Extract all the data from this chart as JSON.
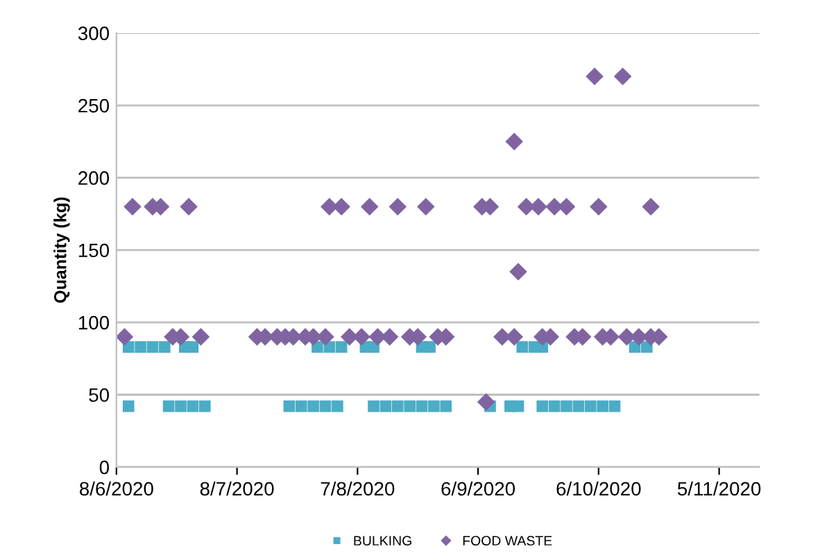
{
  "chart_data": {
    "type": "scatter",
    "ylabel": "Quantity (kg)",
    "xlim": [
      "2020-06-08",
      "2020-11-15"
    ],
    "xticks": [
      {
        "value": "2020-06-08",
        "label": "8/6/2020"
      },
      {
        "value": "2020-07-08",
        "label": "8/7/2020"
      },
      {
        "value": "2020-08-07",
        "label": "7/8/2020"
      },
      {
        "value": "2020-09-06",
        "label": "6/9/2020"
      },
      {
        "value": "2020-10-06",
        "label": "6/10/2020"
      },
      {
        "value": "2020-11-05",
        "label": "5/11/2020"
      }
    ],
    "ylim": [
      0,
      300
    ],
    "yticks": [
      0,
      50,
      100,
      150,
      200,
      250,
      300
    ],
    "grid": "y",
    "legend": "bottom",
    "series": [
      {
        "name": "BULKING",
        "color": "#4bacc6",
        "marker": "square",
        "x": [
          "2020-06-11",
          "2020-06-21",
          "2020-06-24",
          "2020-06-27",
          "2020-06-30",
          "2020-07-21",
          "2020-07-24",
          "2020-07-27",
          "2020-07-30",
          "2020-08-02",
          "2020-08-11",
          "2020-08-14",
          "2020-08-17",
          "2020-08-20",
          "2020-08-23",
          "2020-08-26",
          "2020-08-29",
          "2020-09-09",
          "2020-09-14",
          "2020-09-16",
          "2020-09-22",
          "2020-09-25",
          "2020-09-28",
          "2020-10-01",
          "2020-10-04",
          "2020-10-07",
          "2020-10-10",
          "2020-06-11",
          "2020-06-14",
          "2020-06-17",
          "2020-06-20",
          "2020-06-25",
          "2020-06-27",
          "2020-07-28",
          "2020-07-31",
          "2020-08-03",
          "2020-08-09",
          "2020-08-11",
          "2020-08-23",
          "2020-08-25",
          "2020-09-17",
          "2020-09-20",
          "2020-09-22",
          "2020-10-15",
          "2020-10-18"
        ],
        "values": [
          42,
          42,
          42,
          42,
          42,
          42,
          42,
          42,
          42,
          42,
          42,
          42,
          42,
          42,
          42,
          42,
          42,
          42,
          42,
          42,
          42,
          42,
          42,
          42,
          42,
          42,
          42,
          83,
          83,
          83,
          83,
          83,
          83,
          83,
          83,
          83,
          83,
          83,
          83,
          83,
          83,
          83,
          83,
          83,
          83
        ]
      },
      {
        "name": "FOOD WASTE",
        "color": "#8064a2",
        "marker": "diamond",
        "x": [
          "2020-06-12",
          "2020-06-17",
          "2020-06-19",
          "2020-06-26",
          "2020-07-31",
          "2020-08-03",
          "2020-08-10",
          "2020-08-17",
          "2020-08-24",
          "2020-09-07",
          "2020-09-09",
          "2020-09-18",
          "2020-09-21",
          "2020-09-25",
          "2020-09-28",
          "2020-10-06",
          "2020-10-19",
          "2020-09-15",
          "2020-10-05",
          "2020-10-12",
          "2020-09-16",
          "2020-09-08",
          "2020-06-10",
          "2020-06-22",
          "2020-06-24",
          "2020-06-29",
          "2020-07-13",
          "2020-07-15",
          "2020-07-18",
          "2020-07-20",
          "2020-07-22",
          "2020-07-25",
          "2020-07-27",
          "2020-07-30",
          "2020-08-05",
          "2020-08-08",
          "2020-08-12",
          "2020-08-15",
          "2020-08-20",
          "2020-08-22",
          "2020-08-27",
          "2020-08-29",
          "2020-09-12",
          "2020-09-15",
          "2020-09-22",
          "2020-09-24",
          "2020-09-30",
          "2020-10-02",
          "2020-10-07",
          "2020-10-09",
          "2020-10-13",
          "2020-10-16",
          "2020-10-19",
          "2020-10-21"
        ],
        "values": [
          180,
          180,
          180,
          180,
          180,
          180,
          180,
          180,
          180,
          180,
          180,
          180,
          180,
          180,
          180,
          180,
          180,
          225,
          270,
          270,
          135,
          45,
          90,
          90,
          90,
          90,
          90,
          90,
          90,
          90,
          90,
          90,
          90,
          90,
          90,
          90,
          90,
          90,
          90,
          90,
          90,
          90,
          90,
          90,
          90,
          90,
          90,
          90,
          90,
          90,
          90,
          90,
          90,
          90
        ]
      }
    ]
  }
}
